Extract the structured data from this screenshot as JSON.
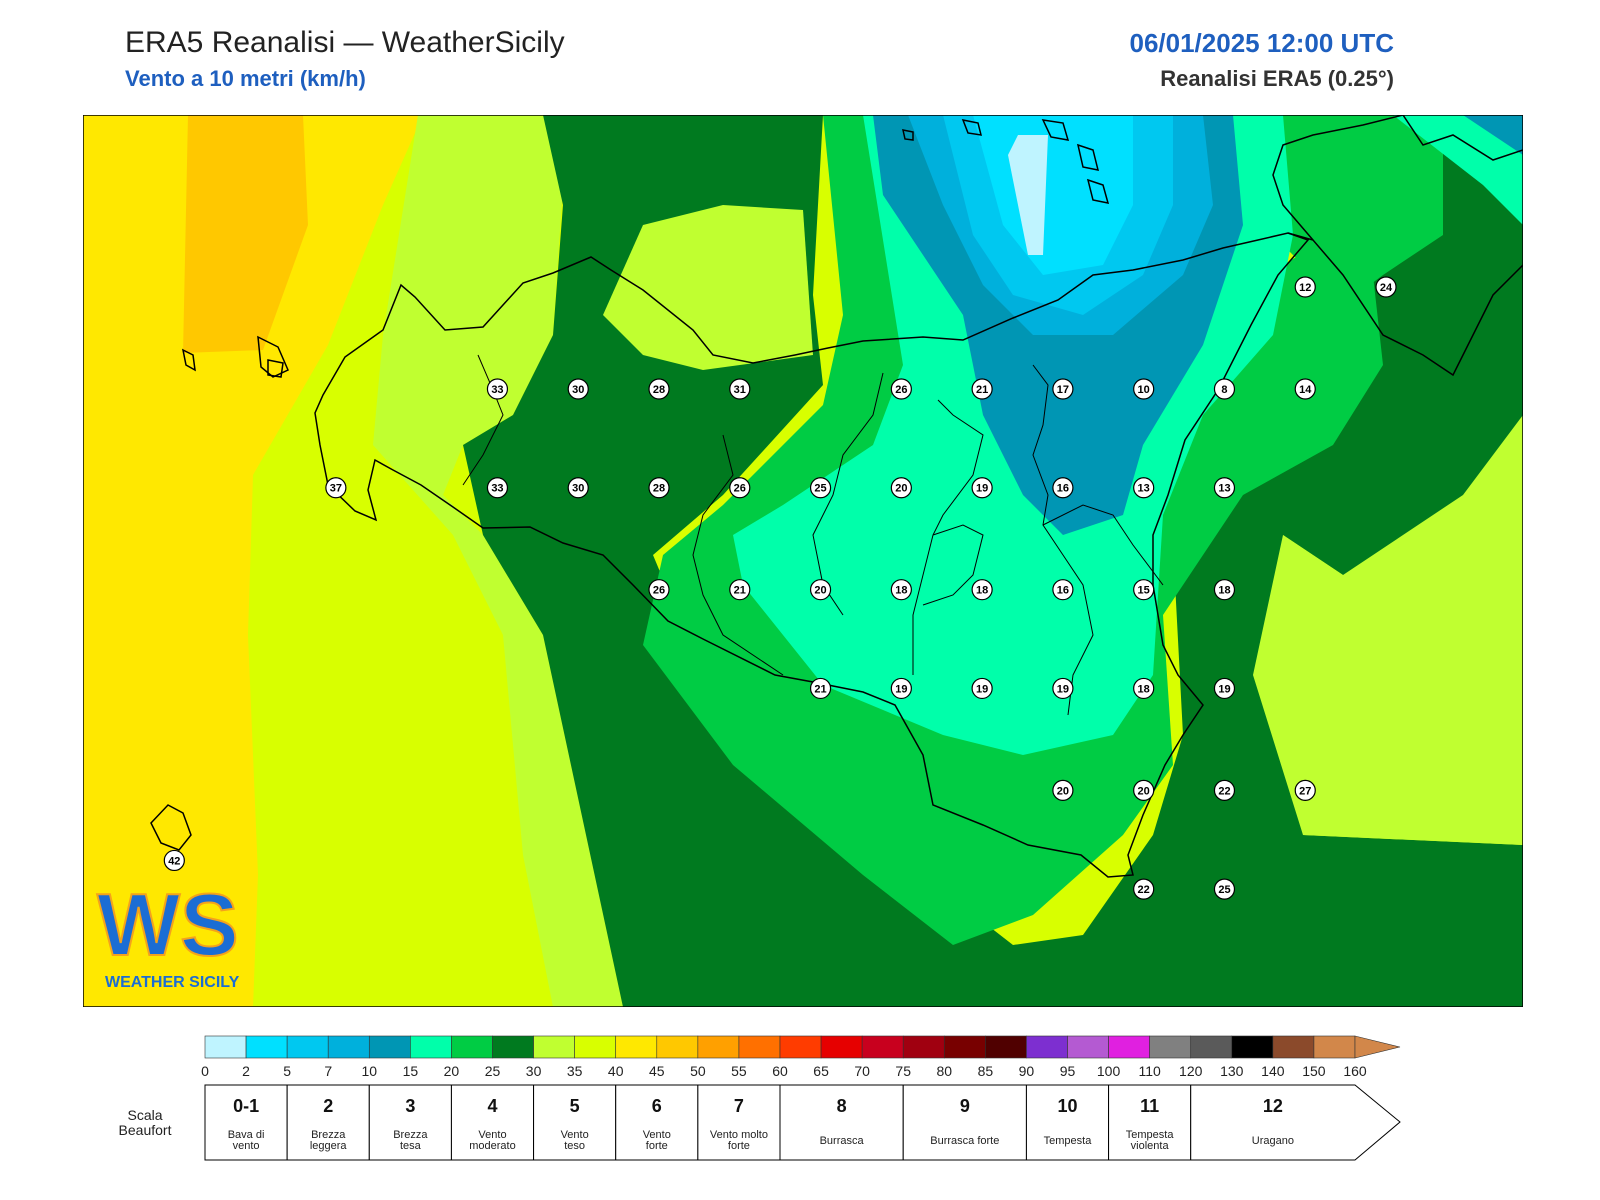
{
  "header": {
    "title": "ERA5 Reanalisi — WeatherSicily",
    "subtitle": "Vento a 10 metri (km/h)",
    "datetime": "06/01/2025 12:00 UTC",
    "source": "Reanalisi ERA5 (0.25°)"
  },
  "logo": {
    "letters": "WS",
    "text": "WEATHER SICILY"
  },
  "map": {
    "domain": {
      "lon": [
        11.9,
        16.0
      ],
      "lat": [
        36.2,
        39.0
      ]
    },
    "station_values": [
      {
        "lon": 13.08,
        "lat": 38.14,
        "value": 33
      },
      {
        "lon": 13.31,
        "lat": 38.14,
        "value": 30
      },
      {
        "lon": 13.54,
        "lat": 38.14,
        "value": 28
      },
      {
        "lon": 13.77,
        "lat": 38.14,
        "value": 31
      },
      {
        "lon": 14.23,
        "lat": 38.14,
        "value": 26
      },
      {
        "lon": 14.46,
        "lat": 38.14,
        "value": 21
      },
      {
        "lon": 14.69,
        "lat": 38.14,
        "value": 17
      },
      {
        "lon": 14.92,
        "lat": 38.14,
        "value": 10
      },
      {
        "lon": 15.15,
        "lat": 38.14,
        "value": 8
      },
      {
        "lon": 15.38,
        "lat": 38.14,
        "value": 14
      },
      {
        "lon": 15.38,
        "lat": 38.46,
        "value": 12
      },
      {
        "lon": 15.61,
        "lat": 38.46,
        "value": 24
      },
      {
        "lon": 12.62,
        "lat": 37.83,
        "value": 37
      },
      {
        "lon": 13.08,
        "lat": 37.83,
        "value": 33
      },
      {
        "lon": 13.31,
        "lat": 37.83,
        "value": 30
      },
      {
        "lon": 13.54,
        "lat": 37.83,
        "value": 28
      },
      {
        "lon": 13.77,
        "lat": 37.83,
        "value": 26
      },
      {
        "lon": 14.0,
        "lat": 37.83,
        "value": 25
      },
      {
        "lon": 14.23,
        "lat": 37.83,
        "value": 20
      },
      {
        "lon": 14.46,
        "lat": 37.83,
        "value": 19
      },
      {
        "lon": 14.69,
        "lat": 37.83,
        "value": 16
      },
      {
        "lon": 14.92,
        "lat": 37.83,
        "value": 13
      },
      {
        "lon": 15.15,
        "lat": 37.83,
        "value": 13
      },
      {
        "lon": 13.54,
        "lat": 37.51,
        "value": 26
      },
      {
        "lon": 13.77,
        "lat": 37.51,
        "value": 21
      },
      {
        "lon": 14.0,
        "lat": 37.51,
        "value": 20
      },
      {
        "lon": 14.23,
        "lat": 37.51,
        "value": 18
      },
      {
        "lon": 14.46,
        "lat": 37.51,
        "value": 18
      },
      {
        "lon": 14.69,
        "lat": 37.51,
        "value": 16
      },
      {
        "lon": 14.92,
        "lat": 37.51,
        "value": 15
      },
      {
        "lon": 15.15,
        "lat": 37.51,
        "value": 18
      },
      {
        "lon": 14.0,
        "lat": 37.2,
        "value": 21
      },
      {
        "lon": 14.23,
        "lat": 37.2,
        "value": 19
      },
      {
        "lon": 14.46,
        "lat": 37.2,
        "value": 19
      },
      {
        "lon": 14.69,
        "lat": 37.2,
        "value": 19
      },
      {
        "lon": 14.92,
        "lat": 37.2,
        "value": 18
      },
      {
        "lon": 15.15,
        "lat": 37.2,
        "value": 19
      },
      {
        "lon": 14.69,
        "lat": 36.88,
        "value": 20
      },
      {
        "lon": 14.92,
        "lat": 36.88,
        "value": 20
      },
      {
        "lon": 15.15,
        "lat": 36.88,
        "value": 22
      },
      {
        "lon": 15.38,
        "lat": 36.88,
        "value": 27
      },
      {
        "lon": 14.92,
        "lat": 36.57,
        "value": 22
      },
      {
        "lon": 15.15,
        "lat": 36.57,
        "value": 25
      },
      {
        "lon": 12.16,
        "lat": 36.66,
        "value": 42
      }
    ]
  },
  "colorbar": {
    "boundaries": [
      0,
      2,
      5,
      7,
      10,
      15,
      20,
      25,
      30,
      35,
      40,
      45,
      50,
      55,
      60,
      65,
      70,
      75,
      80,
      85,
      90,
      95,
      100,
      110,
      120,
      130,
      140,
      150,
      160
    ],
    "colors": [
      "#bff4ff",
      "#00e0ff",
      "#00c8f0",
      "#00b0dc",
      "#0096b4",
      "#00ffaa",
      "#00cc44",
      "#007a1f",
      "#c0ff30",
      "#d8ff00",
      "#ffe800",
      "#ffc800",
      "#ffa000",
      "#ff7000",
      "#ff3c00",
      "#e60000",
      "#c8001e",
      "#a00010",
      "#780000",
      "#500000",
      "#7d2fd0",
      "#b45ad2",
      "#e020e0",
      "#808080",
      "#5a5a5a",
      "#000000",
      "#8b4a2b",
      "#d2874a"
    ],
    "labels": [
      "0",
      "2",
      "5",
      "7",
      "10",
      "15",
      "20",
      "25",
      "30",
      "35",
      "40",
      "45",
      "50",
      "55",
      "60",
      "65",
      "70",
      "75",
      "80",
      "85",
      "90",
      "95",
      "100",
      "110",
      "120",
      "130",
      "140",
      "150",
      "160"
    ]
  },
  "beaufort": {
    "scale_label": "Scala Beaufort",
    "classes": [
      {
        "force": "0-1",
        "name": "Bava di vento",
        "from": 0,
        "to": 5
      },
      {
        "force": "2",
        "name": "Brezza leggera",
        "from": 5,
        "to": 10
      },
      {
        "force": "3",
        "name": "Brezza tesa",
        "from": 10,
        "to": 20
      },
      {
        "force": "4",
        "name": "Vento moderato",
        "from": 20,
        "to": 30
      },
      {
        "force": "5",
        "name": "Vento teso",
        "from": 30,
        "to": 40
      },
      {
        "force": "6",
        "name": "Vento forte",
        "from": 40,
        "to": 50
      },
      {
        "force": "7",
        "name": "Vento molto forte",
        "from": 50,
        "to": 60
      },
      {
        "force": "8",
        "name": "Burrasca",
        "from": 60,
        "to": 75
      },
      {
        "force": "9",
        "name": "Burrasca forte",
        "from": 75,
        "to": 90
      },
      {
        "force": "10",
        "name": "Tempesta",
        "from": 90,
        "to": 100
      },
      {
        "force": "11",
        "name": "Tempesta violenta",
        "from": 100,
        "to": 120
      },
      {
        "force": "12",
        "name": "Uragano",
        "from": 120,
        "to": 160
      }
    ]
  }
}
